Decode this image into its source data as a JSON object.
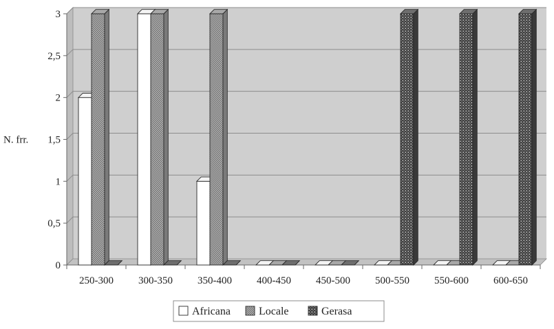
{
  "chart_data": {
    "type": "bar",
    "title": "",
    "xlabel": "",
    "ylabel": "N. frr.",
    "ylim": [
      0,
      3
    ],
    "yticks": [
      {
        "value": 0,
        "label": "0"
      },
      {
        "value": 0.5,
        "label": "0,5"
      },
      {
        "value": 1,
        "label": "1"
      },
      {
        "value": 1.5,
        "label": "1,5"
      },
      {
        "value": 2,
        "label": "2"
      },
      {
        "value": 2.5,
        "label": "2,5"
      },
      {
        "value": 3,
        "label": "3"
      }
    ],
    "categories": [
      "250-300",
      "300-350",
      "350-400",
      "400-450",
      "450-500",
      "500-550",
      "550-600",
      "600-650"
    ],
    "series": [
      {
        "name": "Africana",
        "values": [
          2,
          3,
          1,
          0,
          0,
          0,
          0,
          0
        ],
        "color": "#ffffff"
      },
      {
        "name": "Locale",
        "values": [
          3,
          3,
          3,
          0,
          0,
          0,
          0,
          0
        ],
        "color": "#9e9e9e"
      },
      {
        "name": "Gerasa",
        "values": [
          0,
          0,
          0,
          0,
          0,
          3,
          3,
          3
        ],
        "color": "#5a5a5a"
      }
    ],
    "grid": true,
    "legend_position": "bottom",
    "style": "3d-bar"
  }
}
